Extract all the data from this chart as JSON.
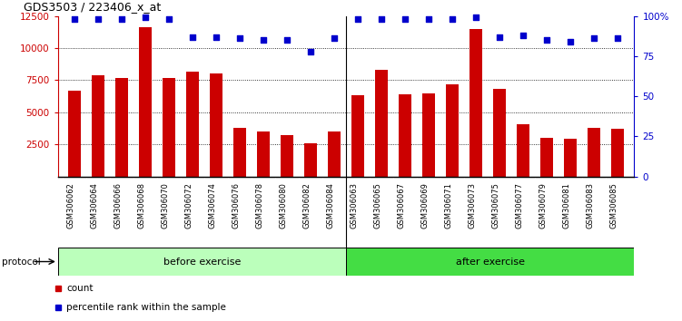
{
  "title": "GDS3503 / 223406_x_at",
  "categories": [
    "GSM306062",
    "GSM306064",
    "GSM306066",
    "GSM306068",
    "GSM306070",
    "GSM306072",
    "GSM306074",
    "GSM306076",
    "GSM306078",
    "GSM306080",
    "GSM306082",
    "GSM306084",
    "GSM306063",
    "GSM306065",
    "GSM306067",
    "GSM306069",
    "GSM306071",
    "GSM306073",
    "GSM306075",
    "GSM306077",
    "GSM306079",
    "GSM306081",
    "GSM306083",
    "GSM306085"
  ],
  "bar_values": [
    6700,
    7900,
    7700,
    11600,
    7700,
    8200,
    8000,
    3800,
    3500,
    3250,
    2600,
    3500,
    6300,
    8300,
    6400,
    6500,
    7200,
    11500,
    6800,
    4100,
    3050,
    2950,
    3800,
    3700
  ],
  "percentile_values": [
    98,
    98,
    98,
    99,
    98,
    87,
    87,
    86,
    85,
    85,
    78,
    86,
    98,
    98,
    98,
    98,
    98,
    99,
    87,
    88,
    85,
    84,
    86,
    86
  ],
  "bar_color": "#cc0000",
  "dot_color": "#0000cc",
  "ylim_left": [
    0,
    12500
  ],
  "ylim_right": [
    0,
    100
  ],
  "yticks_left": [
    2500,
    5000,
    7500,
    10000,
    12500
  ],
  "yticks_right": [
    0,
    25,
    50,
    75,
    100
  ],
  "ytick_labels_right": [
    "0",
    "25",
    "50",
    "75",
    "100%"
  ],
  "group1_label": "before exercise",
  "group2_label": "after exercise",
  "group1_count": 12,
  "group2_count": 12,
  "protocol_label": "protocol",
  "legend_count_label": "count",
  "legend_percentile_label": "percentile rank within the sample",
  "group1_color": "#bbffbb",
  "group2_color": "#44dd44",
  "bar_color_red": "#cc0000",
  "dot_color_blue": "#0000cc",
  "separator_idx": 12
}
